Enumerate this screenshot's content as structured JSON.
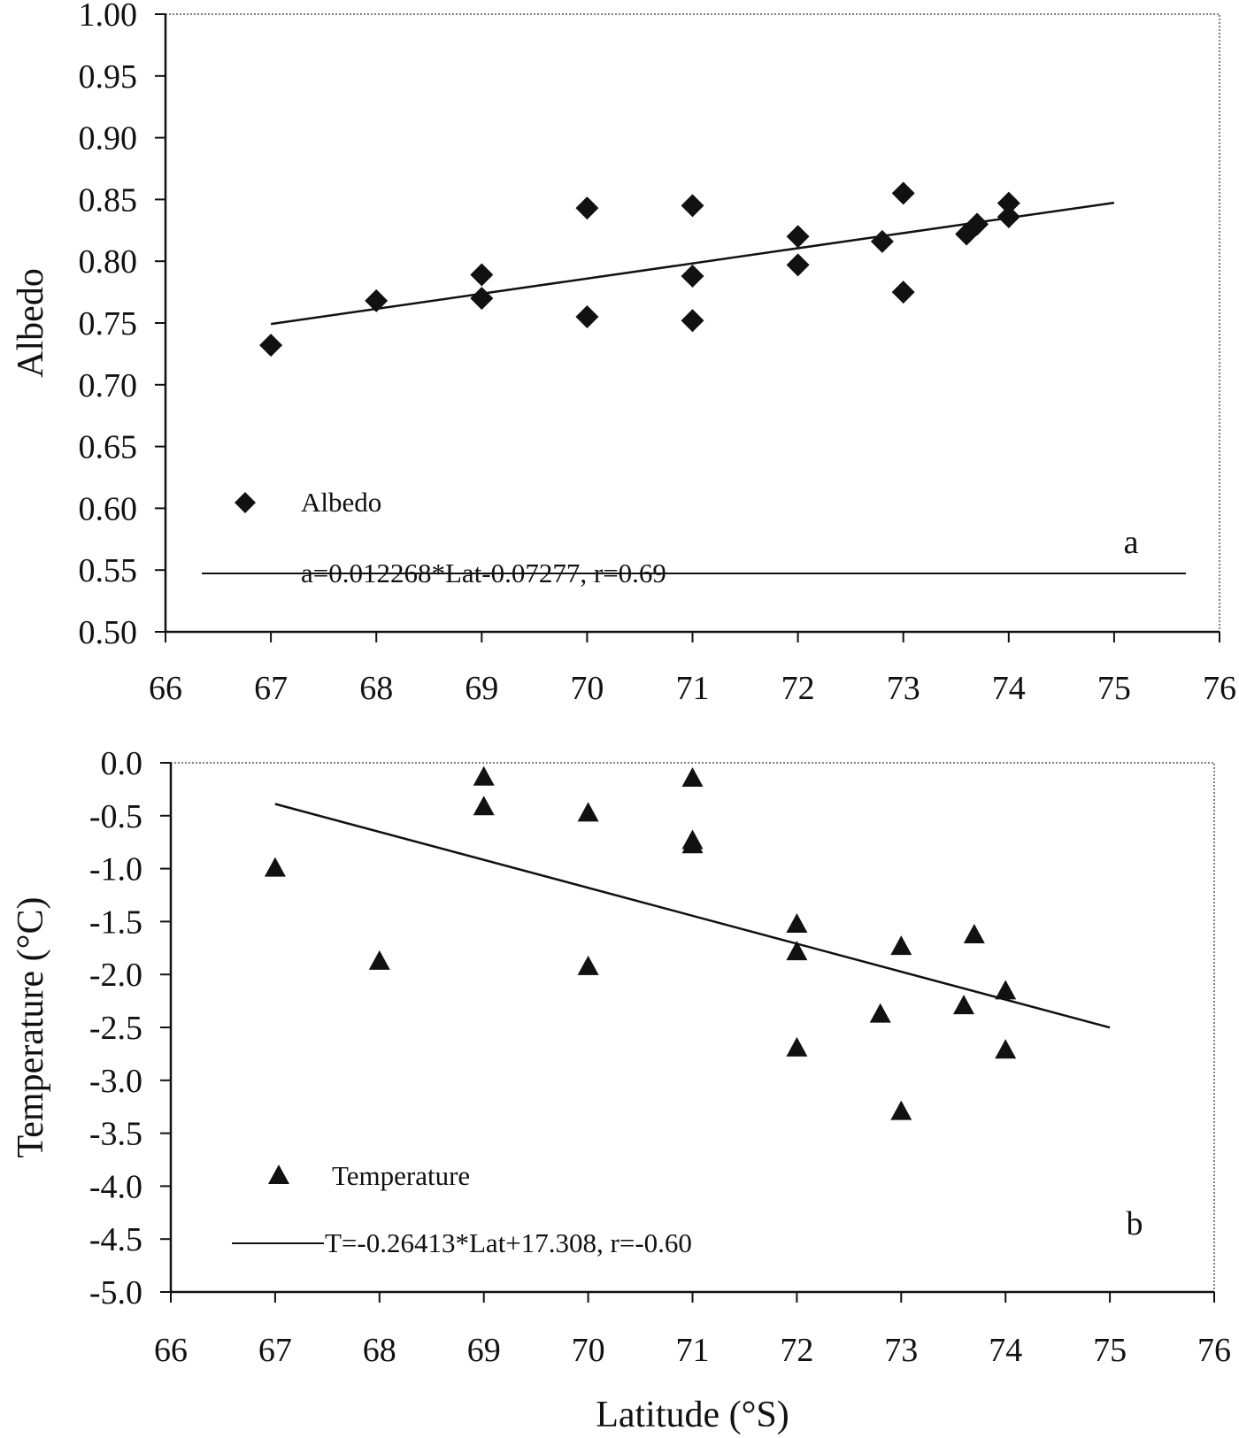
{
  "chart_data": [
    {
      "type": "scatter",
      "panel_label": "a",
      "title": "",
      "xlabel": "",
      "ylabel": "Albedo",
      "xlim": [
        66,
        76
      ],
      "ylim": [
        0.5,
        1.0
      ],
      "xticks": [
        "66",
        "67",
        "68",
        "69",
        "70",
        "71",
        "72",
        "73",
        "74",
        "75",
        "76"
      ],
      "yticks": [
        "1.00",
        "0.95",
        "0.90",
        "0.85",
        "0.80",
        "0.75",
        "0.70",
        "0.65",
        "0.60",
        "0.55",
        "0.50"
      ],
      "grid": false,
      "legend_position": "lower-left",
      "marker": "diamond",
      "color": "#111111",
      "series": [
        {
          "name": "Albedo",
          "points": [
            [
              67.0,
              0.732
            ],
            [
              68.0,
              0.768
            ],
            [
              69.0,
              0.789
            ],
            [
              69.0,
              0.77
            ],
            [
              70.0,
              0.843
            ],
            [
              70.0,
              0.755
            ],
            [
              71.0,
              0.845
            ],
            [
              71.0,
              0.788
            ],
            [
              71.0,
              0.752
            ],
            [
              72.0,
              0.82
            ],
            [
              72.0,
              0.797
            ],
            [
              72.8,
              0.816
            ],
            [
              73.0,
              0.855
            ],
            [
              73.0,
              0.775
            ],
            [
              73.6,
              0.822
            ],
            [
              73.7,
              0.83
            ],
            [
              74.0,
              0.836
            ],
            [
              74.0,
              0.847
            ]
          ]
        }
      ],
      "fit": {
        "name": "a=0.012268*Lat-0.07277, r=0.69",
        "slope": 0.012268,
        "intercept": -0.07277,
        "x_range": [
          67,
          75
        ]
      }
    },
    {
      "type": "scatter",
      "panel_label": "b",
      "title": "",
      "xlabel": "Latitude (°S)",
      "ylabel": "Temperature (°C)",
      "xlim": [
        66,
        76
      ],
      "ylim": [
        -5.0,
        0.0
      ],
      "xticks": [
        "66",
        "67",
        "68",
        "69",
        "70",
        "71",
        "72",
        "73",
        "74",
        "75",
        "76"
      ],
      "yticks": [
        "0.0",
        "-0.5",
        "-1.0",
        "-1.5",
        "-2.0",
        "-2.5",
        "-3.0",
        "-3.5",
        "-4.0",
        "-4.5",
        "-5.0"
      ],
      "grid": false,
      "legend_position": "lower-left",
      "marker": "triangle",
      "color": "#111111",
      "series": [
        {
          "name": "Temperature",
          "points": [
            [
              67.0,
              -1.0
            ],
            [
              68.0,
              -1.88
            ],
            [
              69.0,
              -0.14
            ],
            [
              69.0,
              -0.42
            ],
            [
              70.0,
              -0.48
            ],
            [
              70.0,
              -1.93
            ],
            [
              71.0,
              -0.15
            ],
            [
              71.0,
              -0.74
            ],
            [
              71.0,
              -0.78
            ],
            [
              72.0,
              -1.53
            ],
            [
              72.0,
              -1.79
            ],
            [
              72.0,
              -2.7
            ],
            [
              72.8,
              -2.38
            ],
            [
              73.0,
              -1.74
            ],
            [
              73.0,
              -3.3
            ],
            [
              73.6,
              -2.3
            ],
            [
              73.7,
              -1.63
            ],
            [
              74.0,
              -2.16
            ],
            [
              74.0,
              -2.72
            ]
          ]
        }
      ],
      "fit": {
        "name": "T=-0.26413*Lat+17.308, r=-0.60",
        "slope": -0.26413,
        "intercept": 17.308,
        "x_range": [
          67,
          75
        ]
      }
    }
  ]
}
